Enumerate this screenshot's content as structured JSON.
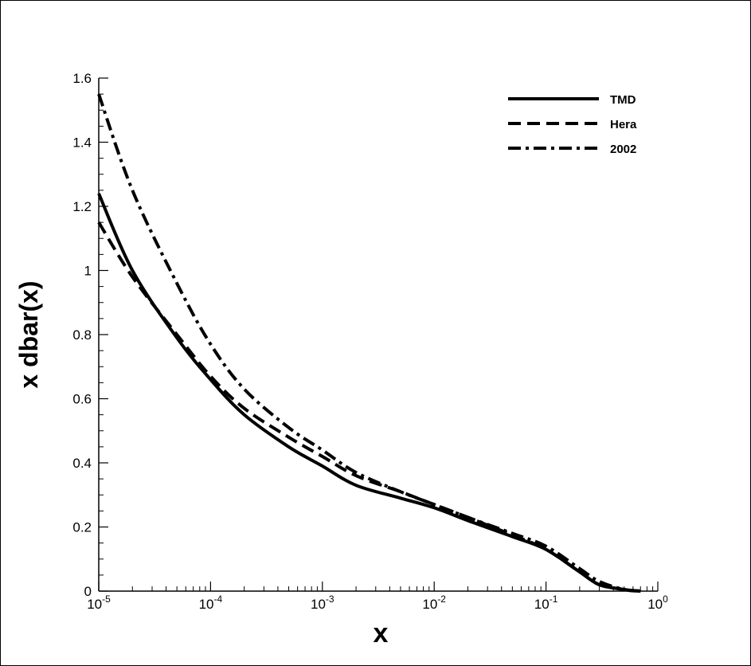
{
  "chart_data": {
    "type": "line",
    "xlabel": "x",
    "ylabel": "x dbar(x)",
    "xscale": "log",
    "xlim": [
      1e-05,
      1
    ],
    "ylim": [
      0,
      1.6
    ],
    "grid": false,
    "legend_position": "top-right",
    "x_tick_labels": [
      {
        "base": "10",
        "exp": "-5"
      },
      {
        "base": "10",
        "exp": "-4"
      },
      {
        "base": "10",
        "exp": "-3"
      },
      {
        "base": "10",
        "exp": "-2"
      },
      {
        "base": "10",
        "exp": "-1"
      },
      {
        "base": "10",
        "exp": "0"
      }
    ],
    "y_tick_labels": [
      "0",
      "0.2",
      "0.4",
      "0.6",
      "0.8",
      "1",
      "1.2",
      "1.4",
      "1.6"
    ],
    "y_tick_values": [
      0,
      0.2,
      0.4,
      0.6,
      0.8,
      1.0,
      1.2,
      1.4,
      1.6
    ],
    "x": [
      1e-05,
      2e-05,
      5e-05,
      0.0001,
      0.0002,
      0.0005,
      0.001,
      0.002,
      0.005,
      0.01,
      0.02,
      0.05,
      0.1,
      0.2,
      0.3,
      0.5,
      0.7
    ],
    "series": [
      {
        "name": "TMD",
        "line_style": "solid",
        "color": "#000000",
        "values": [
          1.24,
          1.0,
          0.79,
          0.66,
          0.55,
          0.45,
          0.39,
          0.33,
          0.29,
          0.26,
          0.22,
          0.17,
          0.13,
          0.06,
          0.02,
          0.005,
          0.0
        ]
      },
      {
        "name": "Hera",
        "line_style": "dashed",
        "color": "#000000",
        "values": [
          1.15,
          0.98,
          0.8,
          0.67,
          0.57,
          0.48,
          0.42,
          0.36,
          0.31,
          0.27,
          0.23,
          0.175,
          0.13,
          0.06,
          0.02,
          0.005,
          0.0
        ]
      },
      {
        "name": "2002",
        "line_style": "dash-dot",
        "color": "#000000",
        "values": [
          1.55,
          1.25,
          0.96,
          0.77,
          0.63,
          0.51,
          0.44,
          0.37,
          0.31,
          0.27,
          0.23,
          0.18,
          0.14,
          0.07,
          0.03,
          0.005,
          0.0
        ]
      }
    ]
  }
}
